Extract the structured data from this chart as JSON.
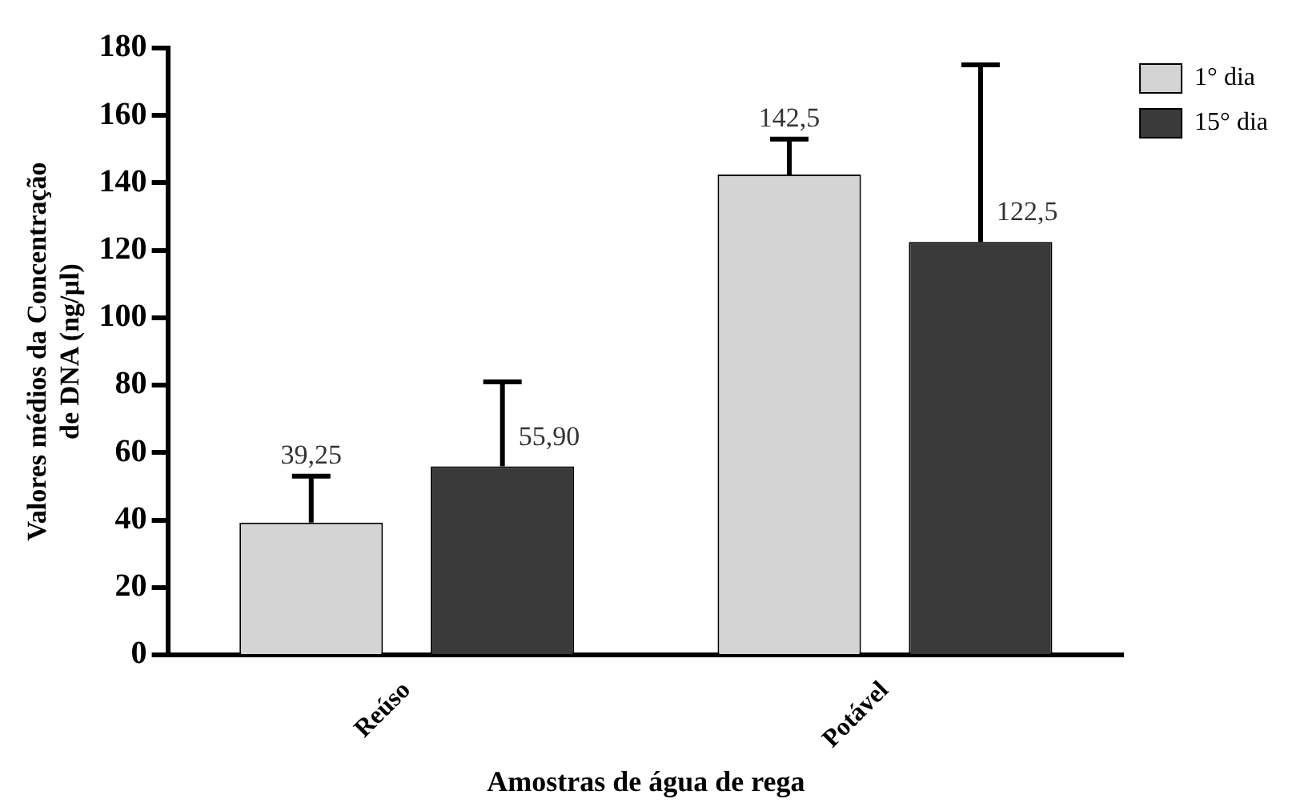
{
  "chart_data": {
    "type": "bar",
    "xlabel": "Amostras de água de rega",
    "ylabel": "Valores médios da Concentração\nde DNA (ng/µl)",
    "categories": [
      "Reúso",
      "Potável"
    ],
    "series": [
      {
        "name": "1° dia",
        "color": "#d4d4d4",
        "values": [
          39.25,
          142.5
        ],
        "errors": [
          [
            39.25,
            53
          ],
          [
            142.5,
            153
          ]
        ],
        "value_labels": [
          "39,25",
          "142,5"
        ]
      },
      {
        "name": "15° dia",
        "color": "#3a3a3a",
        "values": [
          55.9,
          122.5
        ],
        "errors": [
          [
            55.9,
            81
          ],
          [
            122.5,
            175
          ]
        ],
        "value_labels": [
          "55,90",
          "122,5"
        ]
      }
    ],
    "ylim": [
      0,
      180
    ],
    "yticks": [
      0,
      20,
      40,
      60,
      80,
      100,
      120,
      140,
      160,
      180
    ],
    "grid": false,
    "legend": "top right"
  }
}
